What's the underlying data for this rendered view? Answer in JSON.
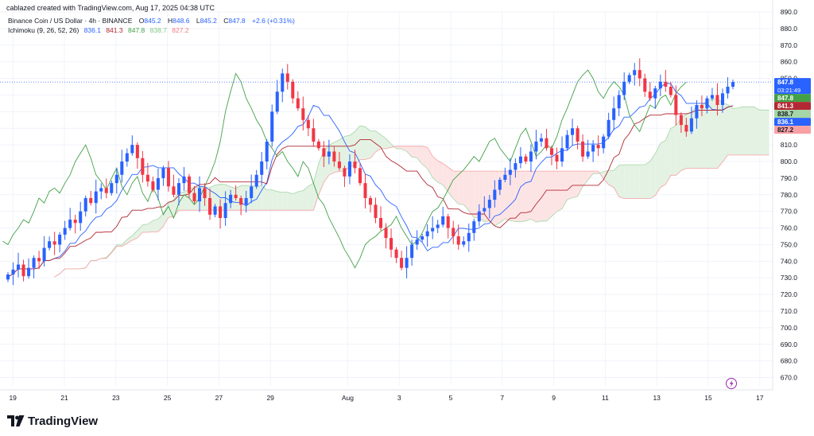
{
  "header": {
    "created_line": "cablazed created with TradingView.com, Aug 17, 2025 04:38 UTC",
    "symbol_line": "Binance Coin / US Dollar · 4h · BINANCE",
    "ohlc": {
      "o_key": "O",
      "o": "845.2",
      "h_key": "H",
      "h": "848.6",
      "l_key": "L",
      "l": "845.2",
      "c_key": "C",
      "c": "847.8",
      "change": "+2.6 (+0.31%)"
    },
    "indicator_name": "Ichimoku (9, 26, 52, 26)",
    "indicator_values": [
      "836.1",
      "841.3",
      "847.8",
      "838.7",
      "827.2"
    ]
  },
  "colors": {
    "up": "#2962ff",
    "down": "#f23645",
    "conversion": "#2962ff",
    "base": "#b22833",
    "lagging": "#43a047",
    "span_a": "#a5d6a7",
    "span_b": "#f7a1a5",
    "cloud_bull": "#e3f2e3",
    "cloud_bear": "#fde4e4",
    "grid": "#f0f3fa",
    "text": "#131722"
  },
  "price_tags": [
    {
      "value": 847.8,
      "label": "847.8",
      "sub": "03:21:49",
      "color": "#2962ff"
    },
    {
      "value": 847.8,
      "label": "847.8",
      "color": "#43a047"
    },
    {
      "value": 841.3,
      "label": "841.3",
      "color": "#b22833"
    },
    {
      "value": 838.7,
      "label": "838.7",
      "color": "#a5d6a7",
      "text_color": "#131722"
    },
    {
      "value": 836.1,
      "label": "836.1",
      "color": "#2962ff"
    },
    {
      "value": 827.2,
      "label": "827.2",
      "color": "#f7a1a5",
      "text_color": "#131722"
    }
  ],
  "brand": {
    "name": "TradingView",
    "logo": "tradingview-logo-icon"
  },
  "chart_data": {
    "type": "candlestick",
    "title": "Binance Coin / US Dollar · 4h · BINANCE",
    "ylim": [
      665,
      890
    ],
    "y_ticks": [
      670,
      680,
      690,
      700,
      710,
      720,
      730,
      740,
      750,
      760,
      770,
      780,
      790,
      800,
      810,
      820,
      830,
      840,
      850,
      860,
      870,
      880,
      890
    ],
    "x_range": [
      -0.5,
      29.5
    ],
    "x_ticks": [
      {
        "pos": 0,
        "label": "19"
      },
      {
        "pos": 2,
        "label": "21"
      },
      {
        "pos": 4,
        "label": "23"
      },
      {
        "pos": 6,
        "label": "25"
      },
      {
        "pos": 8,
        "label": "27"
      },
      {
        "pos": 10,
        "label": "29"
      },
      {
        "pos": 13,
        "label": "Aug"
      },
      {
        "pos": 15,
        "label": "3"
      },
      {
        "pos": 17,
        "label": "5"
      },
      {
        "pos": 19,
        "label": "7"
      },
      {
        "pos": 21,
        "label": "9"
      },
      {
        "pos": 23,
        "label": "11"
      },
      {
        "pos": 25,
        "label": "13"
      },
      {
        "pos": 27,
        "label": "15"
      },
      {
        "pos": 29,
        "label": "17"
      }
    ],
    "last_price": 847.8,
    "candle_closes": [
      732,
      735,
      738,
      731,
      736,
      742,
      740,
      748,
      752,
      750,
      756,
      760,
      765,
      763,
      770,
      778,
      775,
      782,
      784,
      781,
      787,
      792,
      800,
      805,
      810,
      802,
      792,
      788,
      783,
      790,
      796,
      785,
      780,
      787,
      791,
      781,
      776,
      784,
      778,
      768,
      773,
      766,
      775,
      780,
      778,
      774,
      778,
      785,
      792,
      800,
      812,
      830,
      842,
      853,
      848,
      838,
      832,
      825,
      820,
      812,
      808,
      803,
      806,
      800,
      796,
      791,
      800,
      796,
      787,
      778,
      774,
      766,
      760,
      754,
      747,
      742,
      736,
      742,
      750,
      753,
      755,
      758,
      760,
      762,
      767,
      760,
      755,
      750,
      752,
      757,
      764,
      770,
      772,
      777,
      783,
      789,
      792,
      795,
      799,
      803,
      800,
      806,
      812,
      814,
      808,
      804,
      800,
      808,
      816,
      820,
      812,
      803,
      806,
      810,
      808,
      815,
      825,
      832,
      840,
      848,
      852,
      855,
      850,
      842,
      838,
      844,
      848,
      845,
      840,
      828,
      822,
      818,
      826,
      834,
      832,
      838,
      840,
      834,
      841,
      845,
      847.8
    ],
    "series": [
      {
        "name": "Conversion Line",
        "value": "836.1"
      },
      {
        "name": "Base Line",
        "value": "841.3"
      },
      {
        "name": "Lagging Span",
        "value": "847.8"
      },
      {
        "name": "Leading Span A",
        "value": "838.7"
      },
      {
        "name": "Leading Span B",
        "value": "827.2"
      }
    ],
    "grid": true,
    "axis_position": "right"
  }
}
